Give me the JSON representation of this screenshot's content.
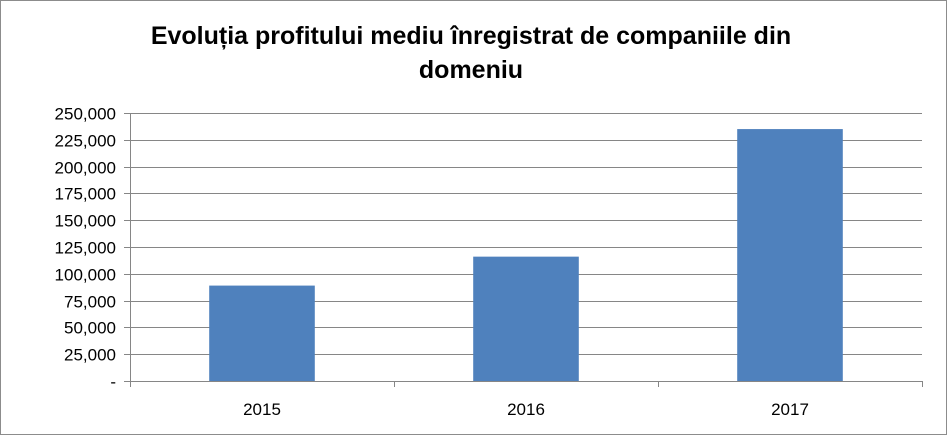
{
  "chart_data": {
    "type": "bar",
    "title": "Evoluția profitului mediu înregistrat de companiile din domeniu",
    "title_lines": [
      "Evoluția profitului mediu înregistrat de companiile din",
      "domeniu"
    ],
    "categories": [
      "2015",
      "2016",
      "2017"
    ],
    "values": [
      89000,
      116000,
      235000
    ],
    "ylim": [
      0,
      250000
    ],
    "yticks": [
      0,
      25000,
      50000,
      75000,
      100000,
      125000,
      150000,
      175000,
      200000,
      225000,
      250000
    ],
    "ytick_labels": [
      "-",
      "25,000",
      "50,000",
      "75,000",
      "100,000",
      "125,000",
      "150,000",
      "175,000",
      "200,000",
      "225,000",
      "250,000"
    ],
    "grid": true,
    "legend": "none",
    "xlabel": "",
    "ylabel": "",
    "bar_color": "#4f81bd",
    "grid_color": "#868686"
  }
}
